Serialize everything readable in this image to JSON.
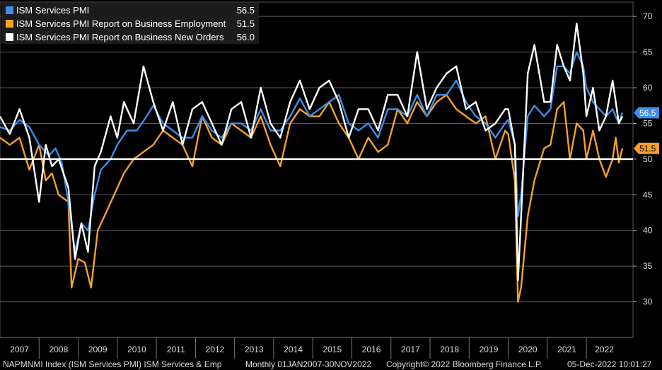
{
  "chart_data": {
    "type": "line",
    "title": "NAPMNMI Index (ISM Services PMI) ISM Services & Emp",
    "frequency": "Monthly",
    "range": "01JAN2007-30NOV2022",
    "x_start": 2007.0,
    "x_end": 2022.92,
    "ylim": [
      25,
      72
    ],
    "yticks": [
      30,
      35,
      40,
      45,
      50,
      55,
      60,
      65,
      70
    ],
    "year_labels": [
      "2007",
      "2008",
      "2009",
      "2010",
      "2011",
      "2012",
      "2013",
      "2014",
      "2015",
      "2016",
      "2017",
      "2018",
      "2019",
      "2020",
      "2021",
      "2022"
    ],
    "reference_line": 50,
    "series": [
      {
        "name": "ISM Services PMI",
        "color": "#3d8ee8",
        "last_value": 56.5,
        "last_label": "56.5",
        "points": [
          [
            2007.0,
            54.5
          ],
          [
            2007.25,
            54
          ],
          [
            2007.5,
            55.5
          ],
          [
            2007.75,
            54.5
          ],
          [
            2008.0,
            52
          ],
          [
            2008.25,
            50.5
          ],
          [
            2008.42,
            51.5
          ],
          [
            2008.58,
            49.5
          ],
          [
            2008.75,
            44
          ],
          [
            2008.92,
            37
          ],
          [
            2009.08,
            41
          ],
          [
            2009.25,
            40
          ],
          [
            2009.42,
            45
          ],
          [
            2009.58,
            48.5
          ],
          [
            2009.83,
            50
          ],
          [
            2010.0,
            52
          ],
          [
            2010.25,
            54
          ],
          [
            2010.5,
            54
          ],
          [
            2010.75,
            56
          ],
          [
            2010.92,
            57.5
          ],
          [
            2011.17,
            55
          ],
          [
            2011.42,
            54
          ],
          [
            2011.67,
            53
          ],
          [
            2011.92,
            53
          ],
          [
            2012.17,
            56
          ],
          [
            2012.42,
            54
          ],
          [
            2012.67,
            53
          ],
          [
            2012.92,
            55
          ],
          [
            2013.17,
            55
          ],
          [
            2013.42,
            54
          ],
          [
            2013.67,
            57
          ],
          [
            2013.92,
            54
          ],
          [
            2014.17,
            54
          ],
          [
            2014.42,
            56
          ],
          [
            2014.67,
            58.5
          ],
          [
            2014.92,
            56
          ],
          [
            2015.17,
            57
          ],
          [
            2015.42,
            58
          ],
          [
            2015.67,
            59
          ],
          [
            2015.92,
            55
          ],
          [
            2016.17,
            54
          ],
          [
            2016.42,
            55
          ],
          [
            2016.67,
            53
          ],
          [
            2016.92,
            57
          ],
          [
            2017.17,
            57
          ],
          [
            2017.42,
            56
          ],
          [
            2017.67,
            59
          ],
          [
            2017.92,
            56
          ],
          [
            2018.17,
            59
          ],
          [
            2018.42,
            59
          ],
          [
            2018.67,
            61
          ],
          [
            2018.92,
            58
          ],
          [
            2019.17,
            56
          ],
          [
            2019.42,
            55
          ],
          [
            2019.67,
            53
          ],
          [
            2019.92,
            55
          ],
          [
            2020.0,
            55.5
          ],
          [
            2020.17,
            52
          ],
          [
            2020.25,
            42
          ],
          [
            2020.33,
            45
          ],
          [
            2020.5,
            56
          ],
          [
            2020.67,
            57.5
          ],
          [
            2020.92,
            56
          ],
          [
            2021.08,
            57
          ],
          [
            2021.25,
            63
          ],
          [
            2021.42,
            63
          ],
          [
            2021.58,
            62
          ],
          [
            2021.75,
            65
          ],
          [
            2021.92,
            63
          ],
          [
            2022.0,
            60
          ],
          [
            2022.17,
            58
          ],
          [
            2022.33,
            57
          ],
          [
            2022.5,
            56
          ],
          [
            2022.67,
            57
          ],
          [
            2022.83,
            55
          ],
          [
            2022.92,
            56.5
          ]
        ]
      },
      {
        "name": "ISM Services PMI Report on Business Employment",
        "color": "#f7a128",
        "last_value": 51.5,
        "last_label": "51.5",
        "points": [
          [
            2007.0,
            53
          ],
          [
            2007.25,
            52
          ],
          [
            2007.5,
            53
          ],
          [
            2007.75,
            48.5
          ],
          [
            2008.0,
            52
          ],
          [
            2008.17,
            47
          ],
          [
            2008.33,
            48
          ],
          [
            2008.5,
            45
          ],
          [
            2008.75,
            44
          ],
          [
            2008.83,
            32
          ],
          [
            2009.0,
            36
          ],
          [
            2009.17,
            35.5
          ],
          [
            2009.33,
            32
          ],
          [
            2009.5,
            40
          ],
          [
            2009.67,
            42
          ],
          [
            2009.92,
            45
          ],
          [
            2010.17,
            48
          ],
          [
            2010.42,
            50
          ],
          [
            2010.67,
            51
          ],
          [
            2010.92,
            52
          ],
          [
            2011.17,
            54
          ],
          [
            2011.42,
            53
          ],
          [
            2011.67,
            52
          ],
          [
            2011.92,
            49
          ],
          [
            2012.17,
            56
          ],
          [
            2012.42,
            53
          ],
          [
            2012.67,
            52
          ],
          [
            2012.92,
            55
          ],
          [
            2013.17,
            54
          ],
          [
            2013.42,
            53
          ],
          [
            2013.67,
            56
          ],
          [
            2013.92,
            52
          ],
          [
            2014.17,
            49
          ],
          [
            2014.42,
            55
          ],
          [
            2014.67,
            57
          ],
          [
            2014.92,
            56
          ],
          [
            2015.17,
            56
          ],
          [
            2015.42,
            58
          ],
          [
            2015.67,
            55
          ],
          [
            2015.92,
            53
          ],
          [
            2016.17,
            50
          ],
          [
            2016.42,
            53
          ],
          [
            2016.67,
            51
          ],
          [
            2016.92,
            52
          ],
          [
            2017.17,
            57
          ],
          [
            2017.42,
            55
          ],
          [
            2017.67,
            58
          ],
          [
            2017.92,
            56
          ],
          [
            2018.17,
            58
          ],
          [
            2018.42,
            59
          ],
          [
            2018.67,
            57
          ],
          [
            2018.92,
            56
          ],
          [
            2019.17,
            55
          ],
          [
            2019.42,
            56
          ],
          [
            2019.67,
            50
          ],
          [
            2019.92,
            54
          ],
          [
            2020.0,
            53.5
          ],
          [
            2020.17,
            47
          ],
          [
            2020.25,
            30
          ],
          [
            2020.33,
            32
          ],
          [
            2020.5,
            42
          ],
          [
            2020.67,
            47
          ],
          [
            2020.92,
            51.5
          ],
          [
            2021.08,
            52
          ],
          [
            2021.25,
            57
          ],
          [
            2021.42,
            58
          ],
          [
            2021.58,
            50
          ],
          [
            2021.75,
            55
          ],
          [
            2021.92,
            54
          ],
          [
            2022.0,
            50
          ],
          [
            2022.17,
            54
          ],
          [
            2022.33,
            50
          ],
          [
            2022.5,
            47.5
          ],
          [
            2022.67,
            50
          ],
          [
            2022.75,
            53
          ],
          [
            2022.83,
            49.5
          ],
          [
            2022.92,
            51.5
          ]
        ]
      },
      {
        "name": "ISM Services PMI Report on Business New Orders",
        "color": "#ffffff",
        "last_value": 56.0,
        "last_label": "56.0",
        "points": [
          [
            2007.0,
            56
          ],
          [
            2007.25,
            53.5
          ],
          [
            2007.5,
            57
          ],
          [
            2007.75,
            53
          ],
          [
            2008.0,
            44
          ],
          [
            2008.17,
            52
          ],
          [
            2008.33,
            49
          ],
          [
            2008.5,
            50
          ],
          [
            2008.75,
            46
          ],
          [
            2008.92,
            36
          ],
          [
            2009.08,
            41
          ],
          [
            2009.25,
            37
          ],
          [
            2009.42,
            49
          ],
          [
            2009.58,
            51
          ],
          [
            2009.83,
            56
          ],
          [
            2010.0,
            53
          ],
          [
            2010.17,
            58
          ],
          [
            2010.42,
            55
          ],
          [
            2010.67,
            63
          ],
          [
            2010.92,
            58
          ],
          [
            2011.17,
            54
          ],
          [
            2011.42,
            58
          ],
          [
            2011.67,
            52
          ],
          [
            2011.92,
            57
          ],
          [
            2012.17,
            58
          ],
          [
            2012.42,
            55
          ],
          [
            2012.67,
            52
          ],
          [
            2012.92,
            57
          ],
          [
            2013.17,
            58
          ],
          [
            2013.42,
            53
          ],
          [
            2013.67,
            60
          ],
          [
            2013.92,
            55
          ],
          [
            2014.17,
            53
          ],
          [
            2014.42,
            58
          ],
          [
            2014.67,
            61
          ],
          [
            2014.92,
            57
          ],
          [
            2015.17,
            60
          ],
          [
            2015.42,
            61
          ],
          [
            2015.67,
            58
          ],
          [
            2015.92,
            53
          ],
          [
            2016.17,
            57
          ],
          [
            2016.42,
            57
          ],
          [
            2016.67,
            54
          ],
          [
            2016.92,
            59
          ],
          [
            2017.17,
            59
          ],
          [
            2017.42,
            56
          ],
          [
            2017.67,
            65
          ],
          [
            2017.92,
            57
          ],
          [
            2018.17,
            60
          ],
          [
            2018.42,
            62
          ],
          [
            2018.67,
            63
          ],
          [
            2018.92,
            57
          ],
          [
            2019.17,
            58
          ],
          [
            2019.42,
            54
          ],
          [
            2019.67,
            55
          ],
          [
            2019.92,
            57
          ],
          [
            2020.0,
            57
          ],
          [
            2020.17,
            52
          ],
          [
            2020.25,
            33
          ],
          [
            2020.33,
            42
          ],
          [
            2020.5,
            62
          ],
          [
            2020.67,
            66
          ],
          [
            2020.92,
            58
          ],
          [
            2021.08,
            58
          ],
          [
            2021.25,
            66
          ],
          [
            2021.42,
            63
          ],
          [
            2021.58,
            61
          ],
          [
            2021.75,
            69
          ],
          [
            2021.92,
            62
          ],
          [
            2022.0,
            56
          ],
          [
            2022.17,
            60
          ],
          [
            2022.33,
            54
          ],
          [
            2022.5,
            56
          ],
          [
            2022.67,
            61
          ],
          [
            2022.83,
            55
          ],
          [
            2022.92,
            56
          ]
        ]
      }
    ]
  },
  "footer": {
    "index_text": "NAPMNMI Index (ISM Services PMI) ISM Services & Emp",
    "frequency_range": "Monthly 01JAN2007-30NOV2022",
    "copyright": "Copyright© 2022 Bloomberg Finance L.P.",
    "timestamp": "05-Dec-2022 10:01:27"
  }
}
